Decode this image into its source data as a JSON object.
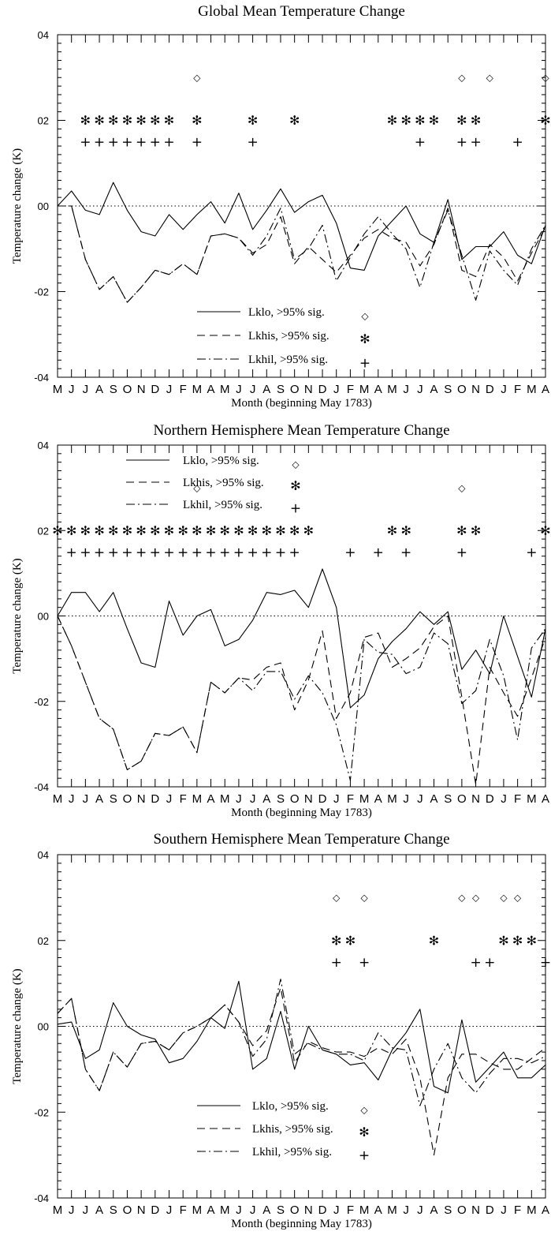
{
  "chart_data": [
    {
      "type": "line",
      "title": "Global Mean Temperature Change",
      "xlabel": "Month (beginning May  1783)",
      "ylabel": "Temperature change (K)",
      "ylim": [
        -0.4,
        0.4
      ],
      "yticks": [
        "-04",
        "-02",
        "00",
        "02",
        "04"
      ],
      "x": [
        "M",
        "J",
        "J",
        "A",
        "S",
        "O",
        "N",
        "D",
        "J",
        "F",
        "M",
        "A",
        "M",
        "J",
        "J",
        "A",
        "S",
        "O",
        "N",
        "D",
        "J",
        "F",
        "M",
        "A",
        "M",
        "J",
        "J",
        "A",
        "S",
        "O",
        "N",
        "D",
        "J",
        "F",
        "M",
        "A"
      ],
      "reference_line": 0,
      "legend_position": "bottom-center",
      "series": [
        {
          "name": "Lklo, >95% sig.",
          "style": "solid",
          "marker": "◇",
          "values": [
            0.0,
            0.035,
            -0.01,
            -0.02,
            0.055,
            -0.01,
            -0.06,
            -0.07,
            -0.02,
            -0.055,
            -0.02,
            0.01,
            -0.04,
            0.03,
            -0.055,
            -0.01,
            0.04,
            -0.015,
            0.01,
            0.025,
            -0.04,
            -0.145,
            -0.15,
            -0.07,
            -0.035,
            0.0,
            -0.065,
            -0.085,
            0.015,
            -0.125,
            -0.095,
            -0.095,
            -0.06,
            -0.115,
            -0.135,
            -0.045
          ],
          "sig_months": [
            10,
            29,
            31,
            35
          ]
        },
        {
          "name": "Lkhis, >95% sig.",
          "style": "dashed",
          "marker": "✻",
          "values": [
            0.0,
            0.0,
            -0.125,
            -0.195,
            -0.165,
            -0.225,
            -0.19,
            -0.15,
            -0.16,
            -0.135,
            -0.16,
            -0.07,
            -0.065,
            -0.075,
            -0.11,
            -0.09,
            -0.025,
            -0.135,
            -0.095,
            -0.125,
            -0.155,
            -0.115,
            -0.075,
            -0.055,
            -0.075,
            -0.085,
            -0.14,
            -0.09,
            -0.005,
            -0.15,
            -0.165,
            -0.09,
            -0.12,
            -0.175,
            -0.11,
            -0.05
          ],
          "sig_months": [
            2,
            3,
            4,
            5,
            6,
            7,
            8,
            10,
            14,
            17,
            24,
            25,
            26,
            27,
            29,
            30,
            35
          ]
        },
        {
          "name": "Lkhil, >95% sig.",
          "style": "dashdot",
          "marker": "+",
          "values": [
            0.0,
            0.0,
            -0.125,
            -0.195,
            -0.165,
            -0.225,
            -0.19,
            -0.15,
            -0.16,
            -0.135,
            -0.16,
            -0.07,
            -0.065,
            -0.075,
            -0.115,
            -0.07,
            -0.005,
            -0.125,
            -0.1,
            -0.045,
            -0.175,
            -0.12,
            -0.065,
            -0.025,
            -0.065,
            -0.1,
            -0.19,
            -0.085,
            -0.01,
            -0.115,
            -0.22,
            -0.105,
            -0.15,
            -0.185,
            -0.1,
            -0.045
          ],
          "sig_months": [
            2,
            3,
            4,
            5,
            6,
            7,
            8,
            10,
            14,
            26,
            29,
            30,
            33
          ]
        }
      ]
    },
    {
      "type": "line",
      "title": "Northern Hemisphere Mean Temperature Change",
      "xlabel": "Month (beginning May  1783)",
      "ylabel": "Temperature change (K)",
      "ylim": [
        -0.4,
        0.4
      ],
      "yticks": [
        "-04",
        "-02",
        "00",
        "02",
        "04"
      ],
      "x": [
        "M",
        "J",
        "J",
        "A",
        "S",
        "O",
        "N",
        "D",
        "J",
        "F",
        "M",
        "A",
        "M",
        "J",
        "J",
        "A",
        "S",
        "O",
        "N",
        "D",
        "J",
        "F",
        "M",
        "A",
        "M",
        "J",
        "J",
        "A",
        "S",
        "O",
        "N",
        "D",
        "J",
        "F",
        "M",
        "A"
      ],
      "reference_line": 0,
      "legend_position": "top-left",
      "series": [
        {
          "name": "Lklo, >95% sig.",
          "style": "solid",
          "marker": "◇",
          "values": [
            0.0,
            0.055,
            0.055,
            0.01,
            0.055,
            -0.03,
            -0.11,
            -0.12,
            0.035,
            -0.045,
            0.0,
            0.015,
            -0.07,
            -0.055,
            -0.01,
            0.055,
            0.05,
            0.06,
            0.02,
            0.11,
            0.02,
            -0.215,
            -0.185,
            -0.1,
            -0.06,
            -0.03,
            0.01,
            -0.02,
            0.01,
            -0.125,
            -0.08,
            -0.135,
            0.0,
            -0.095,
            -0.19,
            -0.03
          ],
          "sig_months": [
            10,
            29
          ]
        },
        {
          "name": "Lkhis, >95% sig.",
          "style": "dashed",
          "marker": "✻",
          "values": [
            0.0,
            -0.07,
            -0.155,
            -0.24,
            -0.265,
            -0.36,
            -0.34,
            -0.275,
            -0.28,
            -0.26,
            -0.32,
            -0.155,
            -0.18,
            -0.145,
            -0.15,
            -0.12,
            -0.11,
            -0.22,
            -0.15,
            -0.035,
            -0.24,
            -0.18,
            -0.05,
            -0.04,
            -0.12,
            -0.1,
            -0.075,
            -0.025,
            0.0,
            -0.19,
            -0.395,
            -0.12,
            -0.18,
            -0.235,
            -0.145,
            -0.05
          ],
          "sig_months": [
            0,
            1,
            2,
            3,
            4,
            5,
            6,
            7,
            8,
            9,
            10,
            11,
            12,
            13,
            14,
            15,
            16,
            17,
            18,
            24,
            25,
            29,
            30,
            35
          ]
        },
        {
          "name": "Lkhil, >95% sig.",
          "style": "dashdot",
          "marker": "+",
          "values": [
            0.0,
            -0.07,
            -0.155,
            -0.24,
            -0.265,
            -0.36,
            -0.34,
            -0.275,
            -0.28,
            -0.26,
            -0.32,
            -0.155,
            -0.18,
            -0.145,
            -0.175,
            -0.13,
            -0.13,
            -0.195,
            -0.14,
            -0.18,
            -0.255,
            -0.385,
            -0.055,
            -0.085,
            -0.09,
            -0.135,
            -0.12,
            -0.04,
            -0.065,
            -0.205,
            -0.175,
            -0.055,
            -0.14,
            -0.29,
            -0.075,
            -0.03
          ],
          "sig_months": [
            1,
            2,
            3,
            4,
            5,
            6,
            7,
            8,
            9,
            10,
            11,
            12,
            13,
            14,
            15,
            16,
            17,
            21,
            23,
            25,
            29,
            34
          ]
        }
      ]
    },
    {
      "type": "line",
      "title": "Southern Hemisphere Mean Temperature Change",
      "xlabel": "Month (beginning May  1783)",
      "ylabel": "Temperature change (K)",
      "ylim": [
        -0.4,
        0.4
      ],
      "yticks": [
        "-04",
        "-02",
        "00",
        "02",
        "04"
      ],
      "x": [
        "M",
        "J",
        "J",
        "A",
        "S",
        "O",
        "N",
        "D",
        "J",
        "F",
        "M",
        "A",
        "M",
        "J",
        "J",
        "A",
        "S",
        "O",
        "N",
        "D",
        "J",
        "F",
        "M",
        "A",
        "M",
        "J",
        "J",
        "A",
        "S",
        "O",
        "N",
        "D",
        "J",
        "F",
        "M",
        "A"
      ],
      "reference_line": 0,
      "legend_position": "bottom-center",
      "series": [
        {
          "name": "Lklo, >95% sig.",
          "style": "solid",
          "marker": "◇",
          "values": [
            0.005,
            0.01,
            -0.075,
            -0.055,
            0.055,
            0.0,
            -0.02,
            -0.03,
            -0.085,
            -0.075,
            -0.035,
            0.02,
            -0.005,
            0.105,
            -0.1,
            -0.075,
            0.035,
            -0.1,
            0.0,
            -0.055,
            -0.065,
            -0.09,
            -0.085,
            -0.125,
            -0.055,
            -0.015,
            0.04,
            -0.14,
            -0.155,
            0.015,
            -0.13,
            -0.095,
            -0.06,
            -0.12,
            -0.12,
            -0.09
          ],
          "sig_months": [
            20,
            22,
            29,
            30,
            32,
            33
          ]
        },
        {
          "name": "Lkhis, >95% sig.",
          "style": "dashed",
          "marker": "✻",
          "values": [
            0.03,
            0.065,
            -0.1,
            -0.15,
            -0.06,
            -0.095,
            -0.04,
            -0.035,
            -0.055,
            -0.015,
            0.0,
            0.02,
            0.05,
            0.01,
            -0.045,
            -0.01,
            0.09,
            -0.085,
            -0.035,
            -0.05,
            -0.06,
            -0.06,
            -0.07,
            -0.05,
            -0.065,
            -0.03,
            -0.12,
            -0.3,
            -0.12,
            -0.065,
            -0.065,
            -0.085,
            -0.1,
            -0.1,
            -0.075,
            -0.05
          ],
          "sig_months": [
            20,
            21,
            27,
            32,
            33,
            34
          ]
        },
        {
          "name": "Lkhil, >95% sig.",
          "style": "dashdot",
          "marker": "+",
          "values": [
            0.03,
            0.065,
            -0.1,
            -0.15,
            -0.06,
            -0.095,
            -0.04,
            -0.035,
            -0.055,
            -0.015,
            0.0,
            0.02,
            0.05,
            0.01,
            -0.07,
            -0.03,
            0.11,
            -0.065,
            -0.04,
            -0.055,
            -0.065,
            -0.065,
            -0.08,
            -0.015,
            -0.05,
            -0.055,
            -0.185,
            -0.1,
            -0.04,
            -0.12,
            -0.155,
            -0.11,
            -0.075,
            -0.075,
            -0.085,
            -0.07
          ],
          "sig_months": [
            20,
            22,
            30,
            31,
            35
          ]
        }
      ]
    }
  ]
}
